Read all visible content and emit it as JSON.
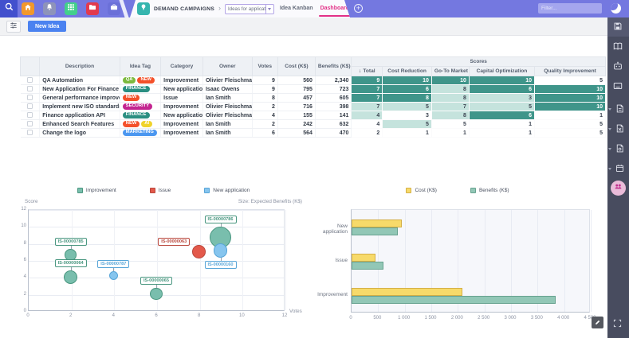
{
  "topbar": {
    "breadcrumb": "DEMAND CAMPAIGNS",
    "campaign_selector": "Ideas for applicat...",
    "tabs": [
      {
        "label": "Idea Kanban",
        "active": false
      },
      {
        "label": "Dashboard",
        "active": true
      }
    ],
    "filter_placeholder": "Filter...",
    "nav_icon_names": [
      "search-icon",
      "home-icon",
      "bell-icon",
      "apps-grid-icon",
      "folder-icon",
      "briefcase-icon",
      "lightbulb-icon",
      "add-view-icon",
      "add-tab-icon",
      "moon-icon"
    ],
    "nav_icon_colors": {
      "search": "#4250cd",
      "home": "#f2982b",
      "bell": "#8e93ba",
      "grid": "#43cf8c",
      "folder": "#e23a4e",
      "briefcase": "#6b70d8",
      "bulb": "#36b5ae"
    }
  },
  "sidebar": {
    "icon_names": [
      "save-icon",
      "book-icon",
      "robot-icon",
      "display-icon",
      "export-pdf-icon",
      "export-excel-icon",
      "export-ppt-icon",
      "calendar-icon",
      "users-avatar",
      "fullscreen-icon"
    ]
  },
  "toolbar": {
    "new_idea_label": "New Idea"
  },
  "table": {
    "scores_group_label": "Scores",
    "sort_arrow": "↓",
    "columns": [
      "Description",
      "Idea Tag",
      "Category",
      "Owner",
      "Votes",
      "Cost (K$)",
      "Benefits (K$)"
    ],
    "score_columns": [
      "Total",
      "Cost Reduction",
      "Go-To Market",
      "Capital Optimization",
      "Quality Improvement"
    ],
    "rows": [
      {
        "description": "QA Automation",
        "tags": [
          {
            "label": "QA",
            "color": "#7cb93e"
          },
          {
            "label": "NEW",
            "color": "#f4502a"
          }
        ],
        "category": "Improvement",
        "owner": "Olivier Fleischmann",
        "votes": "9",
        "cost": "560",
        "benefits": "2,340",
        "scores": [
          {
            "v": "9",
            "level": "high"
          },
          {
            "v": "10",
            "level": "high"
          },
          {
            "v": "10",
            "level": "high"
          },
          {
            "v": "10",
            "level": "high"
          },
          {
            "v": "5",
            "level": "low"
          }
        ]
      },
      {
        "description": "New Application For Finance",
        "tags": [
          {
            "label": "FINANCE",
            "color": "#2a8f82"
          }
        ],
        "category": "New application",
        "owner": "Isaac Owens",
        "votes": "9",
        "cost": "795",
        "benefits": "723",
        "scores": [
          {
            "v": "7",
            "level": "high"
          },
          {
            "v": "6",
            "level": "high"
          },
          {
            "v": "8",
            "level": "mid"
          },
          {
            "v": "6",
            "level": "high"
          },
          {
            "v": "10",
            "level": "high"
          }
        ]
      },
      {
        "description": "General performance improvement",
        "tags": [
          {
            "label": "NEW",
            "color": "#f4502a"
          }
        ],
        "category": "Issue",
        "owner": "Ian Smith",
        "votes": "8",
        "cost": "457",
        "benefits": "605",
        "scores": [
          {
            "v": "7",
            "level": "high"
          },
          {
            "v": "8",
            "level": "high"
          },
          {
            "v": "8",
            "level": "mid"
          },
          {
            "v": "3",
            "level": "mid"
          },
          {
            "v": "10",
            "level": "high"
          }
        ]
      },
      {
        "description": "Implement new ISO standards",
        "tags": [
          {
            "label": "SECURITY",
            "color": "#c32490"
          }
        ],
        "category": "Improvement",
        "owner": "Olivier Fleischmann",
        "votes": "2",
        "cost": "716",
        "benefits": "398",
        "scores": [
          {
            "v": "7",
            "level": "mid"
          },
          {
            "v": "5",
            "level": "mid"
          },
          {
            "v": "7",
            "level": "mid"
          },
          {
            "v": "5",
            "level": "mid"
          },
          {
            "v": "10",
            "level": "high"
          }
        ]
      },
      {
        "description": "Finance application API",
        "tags": [
          {
            "label": "FINANCE",
            "color": "#2a8f82"
          }
        ],
        "category": "New application",
        "owner": "Olivier Fleischmann",
        "votes": "4",
        "cost": "155",
        "benefits": "141",
        "scores": [
          {
            "v": "4",
            "level": "mid"
          },
          {
            "v": "3",
            "level": "low"
          },
          {
            "v": "8",
            "level": "mid"
          },
          {
            "v": "6",
            "level": "high"
          },
          {
            "v": "1",
            "level": "low"
          }
        ]
      },
      {
        "description": "Enhanced Search Features",
        "tags": [
          {
            "label": "NEW",
            "color": "#f4502a"
          },
          {
            "label": "AI",
            "color": "#f0d32b"
          }
        ],
        "category": "Improvement",
        "owner": "Ian Smith",
        "votes": "2",
        "cost": "242",
        "benefits": "632",
        "scores": [
          {
            "v": "4",
            "level": "low"
          },
          {
            "v": "5",
            "level": "mid"
          },
          {
            "v": "5",
            "level": "low"
          },
          {
            "v": "1",
            "level": "low"
          },
          {
            "v": "5",
            "level": "low"
          }
        ]
      },
      {
        "description": "Change the logo",
        "tags": [
          {
            "label": "MARKETING",
            "color": "#4b97f0"
          }
        ],
        "category": "Improvement",
        "owner": "Ian Smith",
        "votes": "6",
        "cost": "564",
        "benefits": "470",
        "scores": [
          {
            "v": "2",
            "level": "low"
          },
          {
            "v": "1",
            "level": "low"
          },
          {
            "v": "1",
            "level": "low"
          },
          {
            "v": "1",
            "level": "low"
          },
          {
            "v": "5",
            "level": "low"
          }
        ]
      }
    ]
  },
  "chart_data": [
    {
      "type": "scatter",
      "ylabel": "Score",
      "xlabel": "Votes",
      "size_label": "Size: Expected Benefits (K$)",
      "xlim": [
        0,
        12
      ],
      "ylim": [
        0,
        12
      ],
      "xticks": [
        0,
        2,
        4,
        6,
        8,
        10,
        12
      ],
      "yticks": [
        0,
        2,
        4,
        6,
        8,
        10,
        12
      ],
      "grid": true,
      "legend_position": "top",
      "legend": [
        {
          "label": "Improvement",
          "fill": "#79bead",
          "stroke": "#48967f"
        },
        {
          "label": "Issue",
          "fill": "#e3594b",
          "stroke": "#b9473c"
        },
        {
          "label": "New application",
          "fill": "#86c5ee",
          "stroke": "#57a5d8"
        }
      ],
      "points": [
        {
          "id": "IS-00000785",
          "x": 2,
          "y": 6.6,
          "size": 398,
          "series": "Improvement",
          "label_pos": "above"
        },
        {
          "id": "IS-00000064",
          "x": 2,
          "y": 4.0,
          "size": 632,
          "series": "Improvement",
          "label_pos": "above"
        },
        {
          "id": "IS-00000787",
          "x": 4,
          "y": 4.2,
          "size": 141,
          "series": "New application",
          "label_pos": "above"
        },
        {
          "id": "IS-00000065",
          "x": 6,
          "y": 2.0,
          "size": 470,
          "series": "Improvement",
          "label_pos": "above"
        },
        {
          "id": "IS-00000063",
          "x": 8,
          "y": 7.0,
          "size": 605,
          "series": "Issue",
          "label_pos": "left"
        },
        {
          "id": "IS-00000786",
          "x": 9,
          "y": 8.7,
          "size": 2340,
          "series": "Improvement",
          "label_pos": "above"
        },
        {
          "id": "IS-00000160",
          "x": 9,
          "y": 7.1,
          "size": 723,
          "series": "New application",
          "label_pos": "below"
        }
      ]
    },
    {
      "type": "bar",
      "orientation": "horizontal",
      "categories": [
        "New application",
        "Issue",
        "Improvement"
      ],
      "series": [
        {
          "name": "Cost (K$)",
          "fill": "#f7da6a",
          "stroke": "#d4af45",
          "values": [
            950,
            457,
            2082
          ]
        },
        {
          "name": "Benefits (K$)",
          "fill": "#92c7b6",
          "stroke": "#67a28f",
          "values": [
            864,
            605,
            3840
          ]
        }
      ],
      "xlim": [
        0,
        4500
      ],
      "xticks": [
        "0",
        "500",
        "1 000",
        "1 500",
        "2 000",
        "2 500",
        "3 000",
        "3 500",
        "4 000",
        "4 500"
      ],
      "grid": true,
      "legend_position": "top"
    }
  ]
}
